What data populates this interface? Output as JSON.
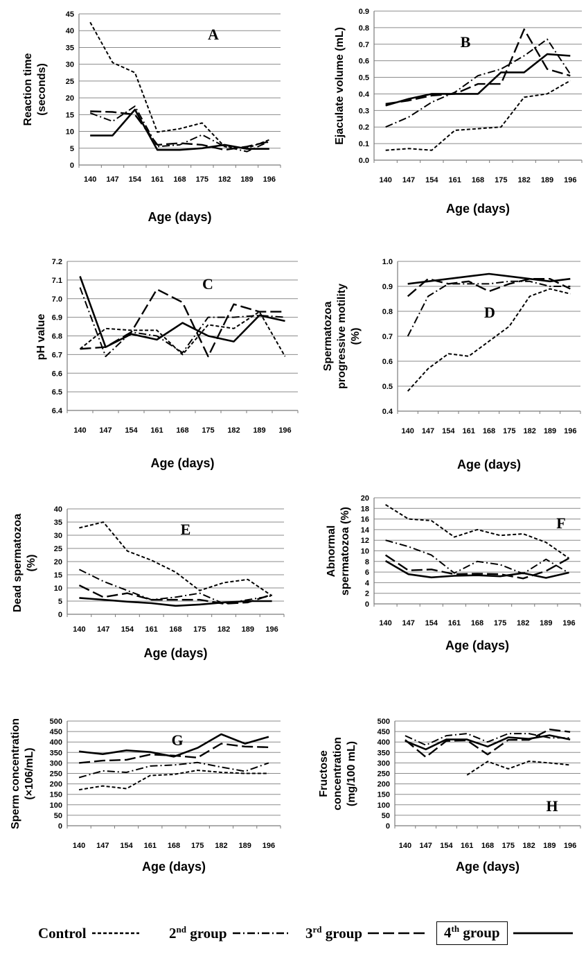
{
  "x_ticks": [
    "140",
    "147",
    "154",
    "161",
    "168",
    "175",
    "182",
    "189",
    "196"
  ],
  "legend": [
    {
      "label": "Control",
      "sup": "",
      "style": "short-dash",
      "boxed": false
    },
    {
      "label": "2",
      "sup": "nd",
      "rest": " group",
      "style": "dash-dot",
      "boxed": false
    },
    {
      "label": "3",
      "sup": "rd",
      "rest": " group",
      "style": "long-dash",
      "boxed": false
    },
    {
      "label": "4",
      "sup": "th",
      "rest": " group",
      "style": "solid",
      "boxed": true
    }
  ],
  "chart_data": [
    {
      "type": "line",
      "panel": "A",
      "ylabel": [
        "Reaction time",
        "(seconds)"
      ],
      "xlabel": "Age (days)",
      "ylim": [
        0,
        45
      ],
      "ystep": 5,
      "ydecimals": 0,
      "categories": [
        "140",
        "147",
        "154",
        "161",
        "168",
        "175",
        "182",
        "189",
        "196"
      ],
      "series": [
        {
          "style": "short-dash",
          "values": [
            42.5,
            30.5,
            27.5,
            9.8,
            10.8,
            12.5,
            5.5,
            5.0,
            7.5
          ]
        },
        {
          "style": "dash-dot",
          "values": [
            15.5,
            13.0,
            17.5,
            5.5,
            6.0,
            9.0,
            5.5,
            4.0,
            7.0
          ]
        },
        {
          "style": "long-dash",
          "values": [
            16.0,
            15.8,
            15.0,
            6.0,
            6.5,
            6.0,
            4.5,
            5.5,
            7.0
          ]
        },
        {
          "style": "solid",
          "values": [
            8.8,
            8.8,
            16.5,
            4.5,
            4.5,
            5.0,
            6.0,
            4.8,
            4.8
          ]
        }
      ]
    },
    {
      "type": "line",
      "panel": "B",
      "ylabel": [
        "Ejaculate volume (mL)"
      ],
      "xlabel": "Age (days)",
      "ylim": [
        0,
        0.9
      ],
      "ystep": 0.1,
      "ydecimals": 1,
      "categories": [
        "140",
        "147",
        "154",
        "161",
        "168",
        "175",
        "182",
        "189",
        "196"
      ],
      "series": [
        {
          "style": "short-dash",
          "values": [
            0.06,
            0.07,
            0.06,
            0.18,
            0.19,
            0.2,
            0.38,
            0.4,
            0.48
          ]
        },
        {
          "style": "dash-dot",
          "values": [
            0.2,
            0.26,
            0.35,
            0.41,
            0.51,
            0.55,
            0.63,
            0.73,
            0.52
          ]
        },
        {
          "style": "long-dash",
          "values": [
            0.34,
            0.36,
            0.39,
            0.4,
            0.46,
            0.46,
            0.79,
            0.55,
            0.51
          ]
        },
        {
          "style": "solid",
          "values": [
            0.33,
            0.37,
            0.4,
            0.4,
            0.4,
            0.53,
            0.53,
            0.64,
            0.63
          ]
        }
      ]
    },
    {
      "type": "line",
      "panel": "C",
      "ylabel": [
        "pH value"
      ],
      "xlabel": "Age (days)",
      "ylim": [
        6.4,
        7.2
      ],
      "ystep": 0.1,
      "ydecimals": 1,
      "categories": [
        "140",
        "147",
        "154",
        "161",
        "168",
        "175",
        "182",
        "189",
        "196"
      ],
      "series": [
        {
          "style": "short-dash",
          "values": [
            6.73,
            6.84,
            6.83,
            6.83,
            6.7,
            6.86,
            6.84,
            6.93,
            6.69
          ]
        },
        {
          "style": "dash-dot",
          "values": [
            7.06,
            6.69,
            6.82,
            6.8,
            6.71,
            6.9,
            6.9,
            6.91,
            6.9
          ]
        },
        {
          "style": "long-dash",
          "values": [
            6.73,
            6.74,
            6.82,
            7.05,
            6.98,
            6.69,
            6.97,
            6.93,
            6.93
          ]
        },
        {
          "style": "solid",
          "values": [
            7.12,
            6.74,
            6.81,
            6.78,
            6.87,
            6.8,
            6.77,
            6.91,
            6.88
          ]
        }
      ]
    },
    {
      "type": "line",
      "panel": "D",
      "ylabel": [
        "Spermatozoa",
        "progressive motility",
        "(%)"
      ],
      "xlabel": "Age (days)",
      "ylim": [
        0.4,
        1
      ],
      "ystep": 0.1,
      "ydecimals": 1,
      "categories": [
        "140",
        "147",
        "154",
        "161",
        "168",
        "175",
        "182",
        "189",
        "196"
      ],
      "series": [
        {
          "style": "short-dash",
          "values": [
            0.48,
            0.57,
            0.63,
            0.62,
            0.68,
            0.74,
            0.86,
            0.89,
            0.87
          ]
        },
        {
          "style": "dash-dot",
          "values": [
            0.7,
            0.86,
            0.91,
            0.91,
            0.91,
            0.92,
            0.92,
            0.9,
            0.9
          ]
        },
        {
          "style": "long-dash",
          "values": [
            0.86,
            0.93,
            0.91,
            0.92,
            0.88,
            0.91,
            0.93,
            0.93,
            0.89
          ]
        },
        {
          "style": "solid",
          "values": [
            0.91,
            0.92,
            0.93,
            0.94,
            0.95,
            0.94,
            0.93,
            0.92,
            0.93
          ]
        }
      ]
    },
    {
      "type": "line",
      "panel": "E",
      "ylabel": [
        "Dead spermatozoa",
        "(%)"
      ],
      "xlabel": "Age (days)",
      "ylim": [
        0,
        40
      ],
      "ystep": 5,
      "ydecimals": 0,
      "categories": [
        "140",
        "147",
        "154",
        "161",
        "168",
        "175",
        "182",
        "189",
        "196"
      ],
      "series": [
        {
          "style": "short-dash",
          "values": [
            32.8,
            35.0,
            24.0,
            20.5,
            16.0,
            9.0,
            12.0,
            13.2,
            7.0
          ]
        },
        {
          "style": "dash-dot",
          "values": [
            17.0,
            12.5,
            9.0,
            5.5,
            6.5,
            8.0,
            4.0,
            5.5,
            7.0
          ]
        },
        {
          "style": "long-dash",
          "values": [
            11.0,
            6.5,
            8.0,
            5.5,
            5.5,
            5.5,
            4.0,
            4.5,
            7.5
          ]
        },
        {
          "style": "solid",
          "values": [
            6.2,
            5.5,
            4.8,
            4.2,
            3.2,
            3.7,
            4.5,
            5.0,
            5.0
          ]
        }
      ]
    },
    {
      "type": "line",
      "panel": "F",
      "ylabel": [
        "Abnormal",
        "spermatozoa (%)"
      ],
      "xlabel": "Age (days)",
      "ylim": [
        0,
        20
      ],
      "ystep": 2,
      "ydecimals": 0,
      "categories": [
        "140",
        "147",
        "154",
        "161",
        "168",
        "175",
        "182",
        "189",
        "196"
      ],
      "series": [
        {
          "style": "short-dash",
          "values": [
            18.7,
            16.0,
            15.7,
            12.6,
            14.0,
            12.9,
            13.2,
            11.6,
            8.6
          ]
        },
        {
          "style": "dash-dot",
          "values": [
            12.0,
            10.8,
            9.2,
            5.8,
            8.0,
            7.4,
            5.7,
            8.4,
            5.8
          ]
        },
        {
          "style": "long-dash",
          "values": [
            9.2,
            6.3,
            6.5,
            5.6,
            5.7,
            5.6,
            4.8,
            6.2,
            8.6
          ]
        },
        {
          "style": "solid",
          "values": [
            8.1,
            5.6,
            5.0,
            5.3,
            5.4,
            5.2,
            5.8,
            4.9,
            5.9
          ]
        }
      ]
    },
    {
      "type": "line",
      "panel": "G",
      "ylabel": [
        "Sperm concentration",
        "(×106/mL)"
      ],
      "xlabel": "Age (days)",
      "ylim": [
        0,
        500
      ],
      "ystep": 50,
      "ydecimals": 0,
      "categories": [
        "140",
        "147",
        "154",
        "161",
        "168",
        "175",
        "182",
        "189",
        "196"
      ],
      "series": [
        {
          "style": "short-dash",
          "values": [
            172,
            190,
            177,
            240,
            245,
            265,
            255,
            250,
            250
          ]
        },
        {
          "style": "dash-dot",
          "values": [
            230,
            262,
            255,
            285,
            290,
            302,
            280,
            260,
            300
          ]
        },
        {
          "style": "long-dash",
          "values": [
            300,
            311,
            315,
            340,
            335,
            325,
            392,
            378,
            375
          ]
        },
        {
          "style": "solid",
          "values": [
            355,
            342,
            360,
            352,
            330,
            372,
            437,
            392,
            425
          ]
        }
      ]
    },
    {
      "type": "line",
      "panel": "H",
      "ylabel": [
        "Fructose",
        "concentration",
        "(mg/100 mL)"
      ],
      "xlabel": "Age (days)",
      "ylim": [
        0,
        500
      ],
      "ystep": 50,
      "ydecimals": 0,
      "categories": [
        "140",
        "147",
        "154",
        "161",
        "168",
        "175",
        "182",
        "189",
        "196"
      ],
      "series": [
        {
          "style": "short-dash",
          "values": [
            null,
            null,
            null,
            242,
            307,
            272,
            308,
            300,
            290
          ]
        },
        {
          "style": "dash-dot",
          "values": [
            430,
            385,
            430,
            440,
            400,
            440,
            440,
            420,
            420
          ]
        },
        {
          "style": "long-dash",
          "values": [
            410,
            328,
            405,
            408,
            340,
            410,
            410,
            460,
            448
          ]
        },
        {
          "style": "solid",
          "values": [
            405,
            365,
            412,
            412,
            378,
            422,
            415,
            432,
            412
          ]
        }
      ]
    }
  ]
}
